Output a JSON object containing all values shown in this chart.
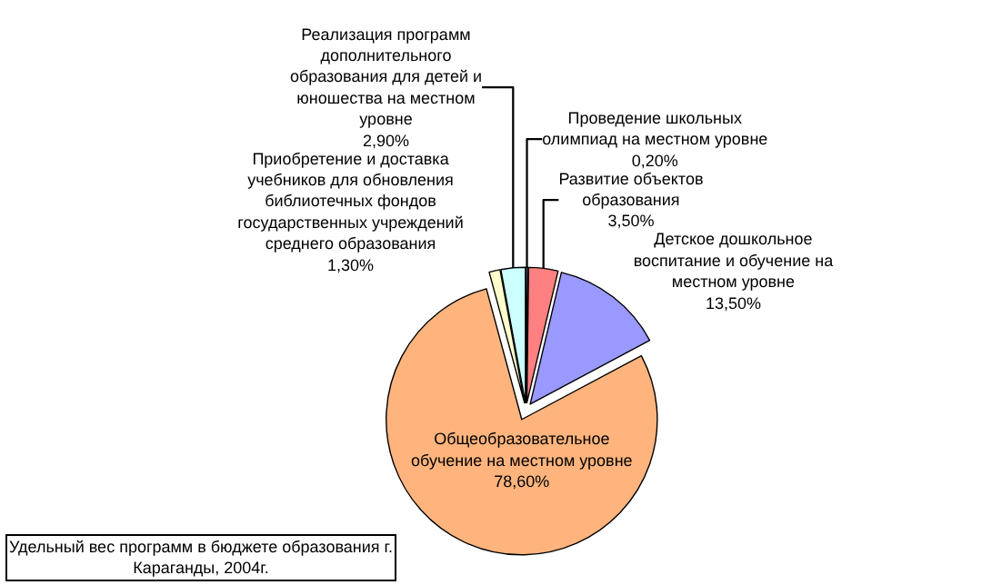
{
  "chart_data": {
    "type": "pie",
    "title": "Удельный вес программ в бюджете образования г. Караганды, 2004г.",
    "categories": [
      "Проведение школьных олимпиад на местном уровне",
      "Развитие объектов образования",
      "Детское дошкольное воспитание и обучение на местном уровне",
      "Общеобразовательное обучение на местном уровне",
      "Приобретение и доставка учебников для обновления библиотечных фондов государственных учреждений среднего образования",
      "Реализация программ дополнительного образования для детей и юношества на местном уровне"
    ],
    "values": [
      0.2,
      3.5,
      13.5,
      78.6,
      1.3,
      2.9
    ],
    "value_labels": [
      "0,20%",
      "3,50%",
      "13,50%",
      "78,60%",
      "1,30%",
      "2,90%"
    ],
    "colors": [
      "#99ccff",
      "#ff8080",
      "#9999ff",
      "#ffb47d",
      "#ffffcc",
      "#ccffff"
    ]
  }
}
